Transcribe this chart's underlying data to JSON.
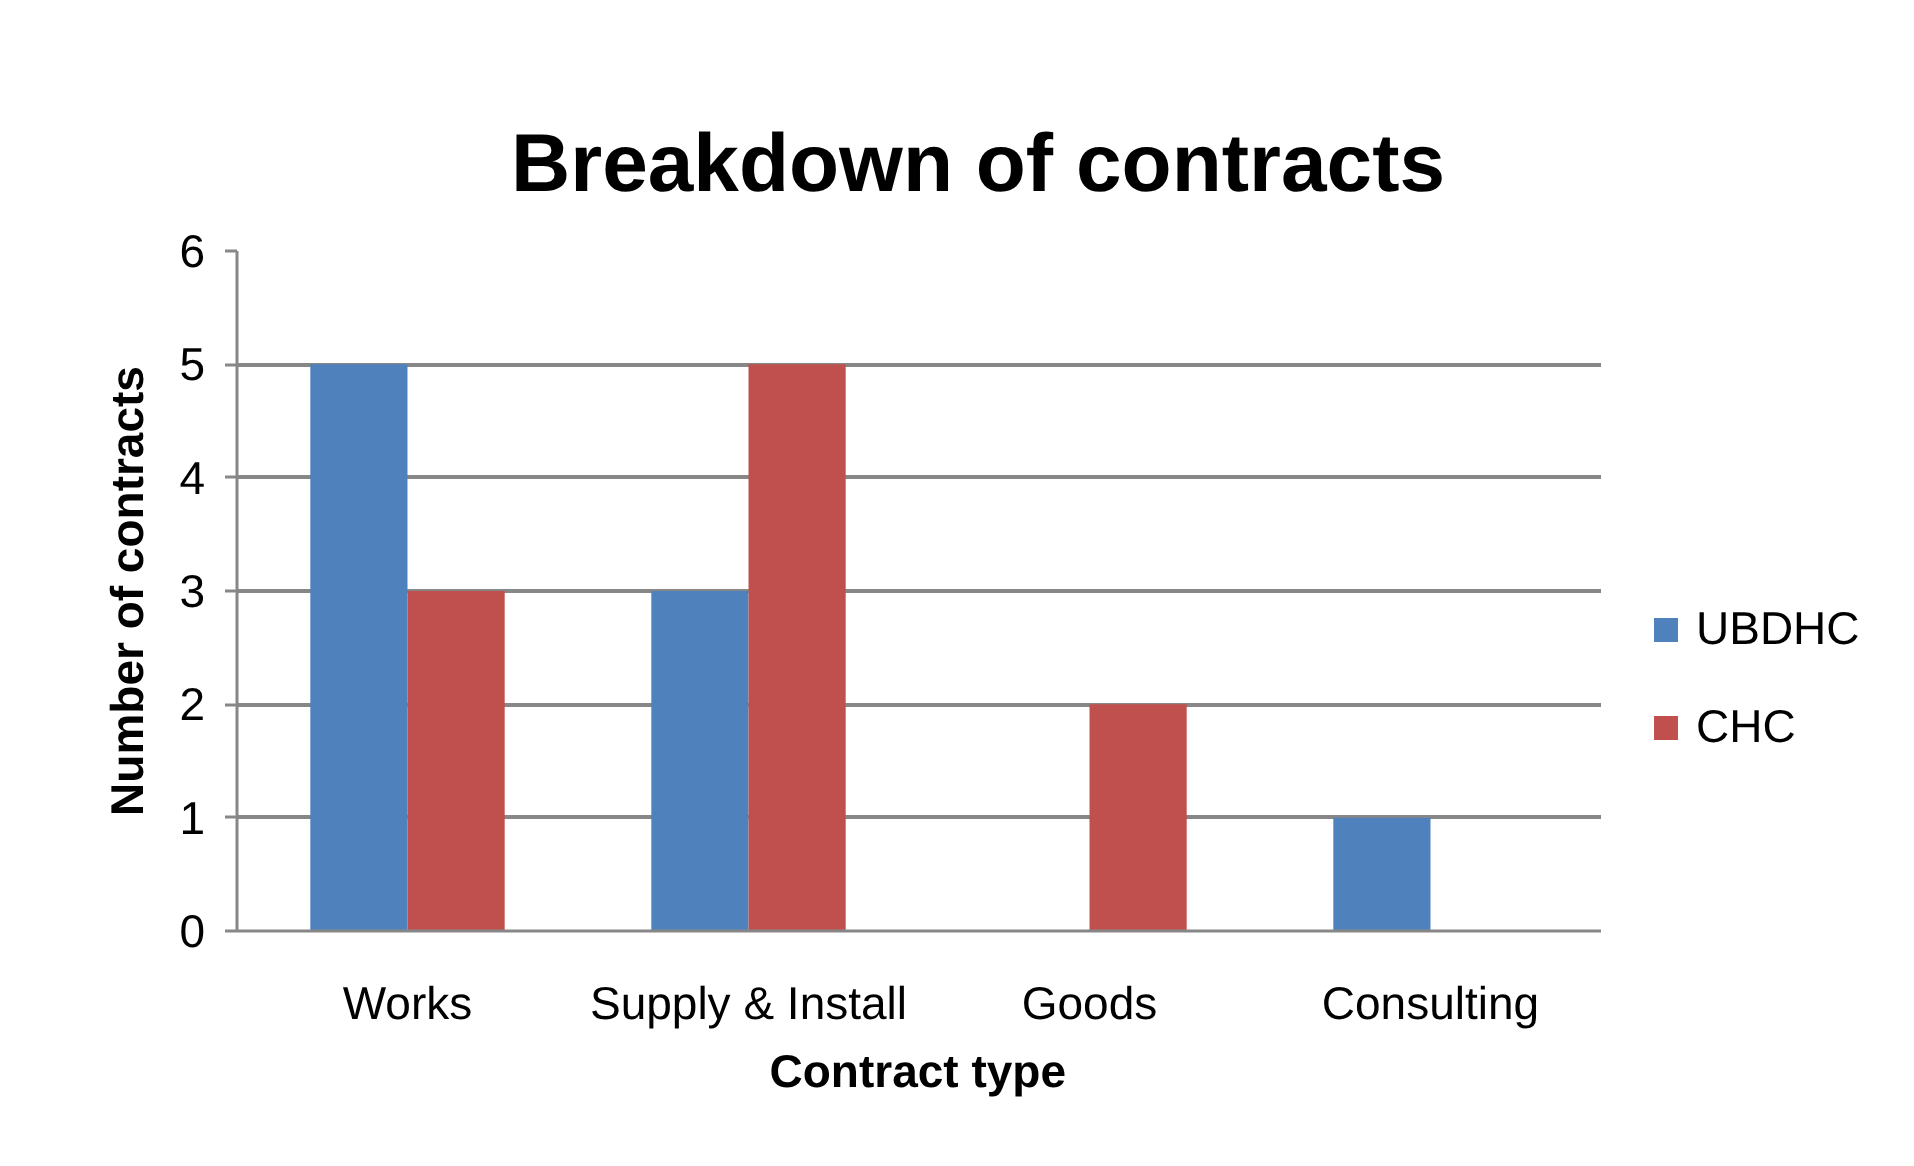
{
  "chart_data": {
    "type": "bar",
    "title": "Breakdown of contracts",
    "xlabel": "Contract type",
    "ylabel": "Number of contracts",
    "categories": [
      "Works",
      "Supply & Install",
      "Goods",
      "Consulting"
    ],
    "series": [
      {
        "name": "UBDHC",
        "color": "#4f81bd",
        "values": [
          5,
          3,
          0,
          1
        ]
      },
      {
        "name": "CHC",
        "color": "#c0504d",
        "values": [
          3,
          5,
          2,
          0
        ]
      }
    ],
    "ylim": [
      0,
      6
    ],
    "yticks": [
      0,
      1,
      2,
      3,
      4,
      5,
      6
    ],
    "grid": "y",
    "legend": "right"
  }
}
